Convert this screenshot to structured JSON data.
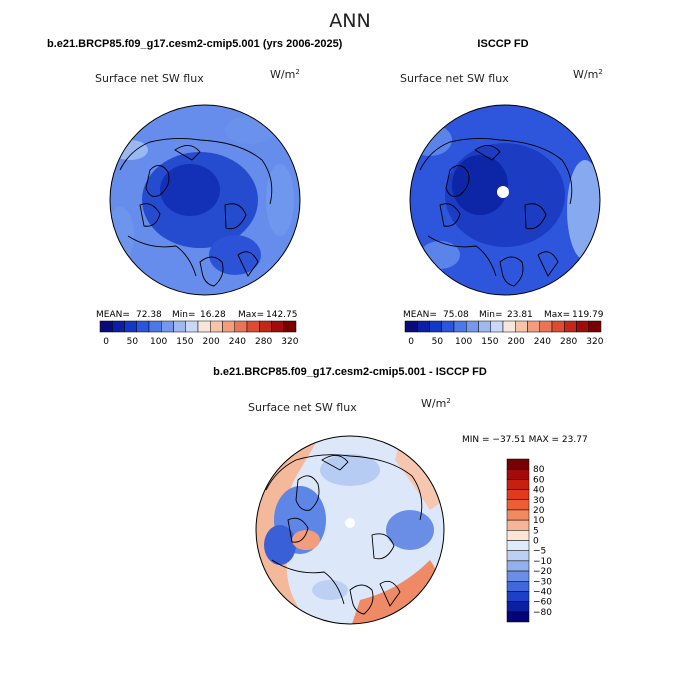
{
  "page_title": "ANN",
  "chart_data": [
    {
      "type": "heatmap",
      "projection": "north polar stereographic",
      "case_title": "b.e21.BRCP85.f09_g17.cesm2-cmip5.001 (yrs 2006-2025)",
      "variable_label": "Surface net SW flux",
      "units_label": "W/m",
      "units_superscript": "2",
      "stats": {
        "mean_label": "MEAN=",
        "mean": "72.38",
        "min_label": "Min=",
        "min": "16.28",
        "max_label": "Max=",
        "max": "142.75"
      },
      "colorbar": {
        "orientation": "horizontal",
        "levels": [
          "0",
          "50",
          "100",
          "150",
          "200",
          "240",
          "280",
          "320"
        ],
        "colors": [
          "#0a0a7a",
          "#0a1fa5",
          "#1238c8",
          "#2a55dc",
          "#4d78e8",
          "#7597ec",
          "#9fb8f0",
          "#c8d8f6",
          "#f6e6dc",
          "#f6c4a8",
          "#f29e7e",
          "#ea7556",
          "#dc4c32",
          "#c22818",
          "#a00c0c",
          "#780000"
        ]
      }
    },
    {
      "type": "heatmap",
      "projection": "north polar stereographic",
      "case_title": "ISCCP FD",
      "variable_label": "Surface net SW flux",
      "units_label": "W/m",
      "units_superscript": "2",
      "stats": {
        "mean_label": "MEAN=",
        "mean": "75.08",
        "min_label": "Min=",
        "min": "23.81",
        "max_label": "Max=",
        "max": "119.79"
      },
      "colorbar": {
        "orientation": "horizontal",
        "levels": [
          "0",
          "50",
          "100",
          "150",
          "200",
          "240",
          "280",
          "320"
        ],
        "colors": [
          "#0a0a7a",
          "#0a1fa5",
          "#1238c8",
          "#2a55dc",
          "#4d78e8",
          "#7597ec",
          "#9fb8f0",
          "#c8d8f6",
          "#f6e6dc",
          "#f6c4a8",
          "#f29e7e",
          "#ea7556",
          "#dc4c32",
          "#c22818",
          "#a00c0c",
          "#780000"
        ]
      }
    },
    {
      "type": "heatmap",
      "projection": "north polar stereographic",
      "case_title": "b.e21.BRCP85.f09_g17.cesm2-cmip5.001 - ISCCP FD",
      "variable_label": "Surface net SW flux",
      "units_label": "W/m",
      "units_superscript": "2",
      "stats_line": "MIN = −37.51  MAX =  23.77",
      "colorbar": {
        "orientation": "vertical",
        "levels": [
          "80",
          "60",
          "40",
          "30",
          "20",
          "10",
          "5",
          "0",
          "−5",
          "−10",
          "−20",
          "−30",
          "−40",
          "−60",
          "−80"
        ],
        "colors": [
          "#780000",
          "#a50a0a",
          "#c8200e",
          "#e03c1c",
          "#ec5e36",
          "#f28a60",
          "#f7b496",
          "#fde5d6",
          "#e0ebfa",
          "#bcd0f4",
          "#92b0ee",
          "#6a8ee6",
          "#4068dc",
          "#1c40c8",
          "#0a20a0",
          "#040478"
        ]
      }
    }
  ]
}
